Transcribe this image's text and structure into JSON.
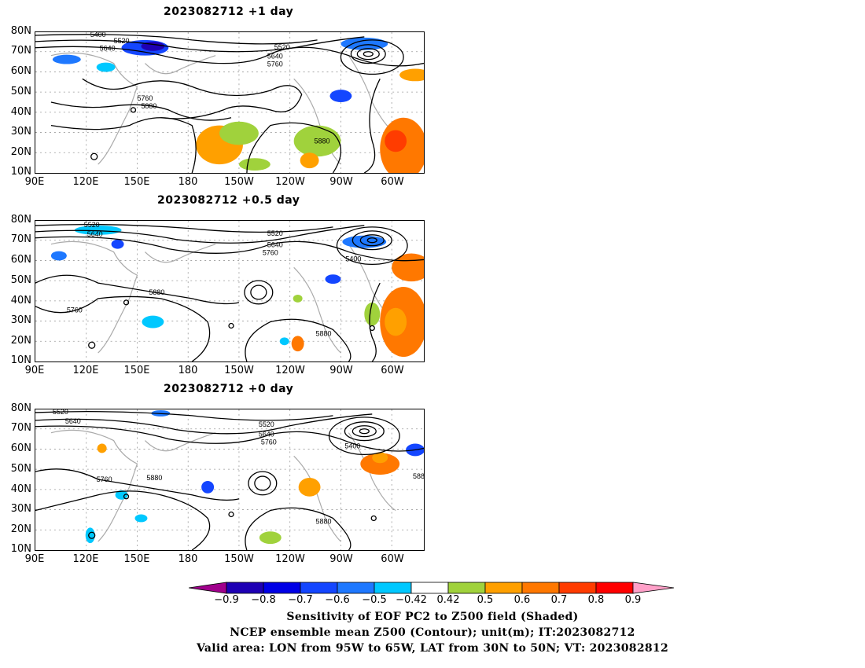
{
  "panels": [
    {
      "title": "2023082712  +1 day"
    },
    {
      "title": "2023082712  +0.5 day"
    },
    {
      "title": "2023082712  +0 day"
    }
  ],
  "lat_labels": [
    "80N",
    "70N",
    "60N",
    "50N",
    "40N",
    "30N",
    "20N",
    "10N"
  ],
  "lon_labels": [
    "90E",
    "120E",
    "150E",
    "180",
    "150W",
    "120W",
    "90W",
    "60W"
  ],
  "contour_labels": {
    "p0": [
      "5400",
      "5520",
      "5640",
      "5520",
      "5640",
      "5760",
      "5760",
      "5880",
      "5880"
    ],
    "p1": [
      "5520",
      "5640",
      "5520",
      "5640",
      "5760",
      "5400",
      "5880",
      "5760",
      "5880"
    ],
    "p2": [
      "5520",
      "5640",
      "5520",
      "5640",
      "5760",
      "5400",
      "5760",
      "5880",
      "5880",
      "588"
    ]
  },
  "colorbar": {
    "labels": [
      "−0.9",
      "−0.8",
      "−0.7",
      "−0.6",
      "−0.5",
      "−0.42",
      "0.42",
      "0.5",
      "0.6",
      "0.7",
      "0.8",
      "0.9"
    ],
    "colors": [
      "#a0008c",
      "#1e00b4",
      "#0000e6",
      "#1446ff",
      "#1e78ff",
      "#00c8ff",
      "#ffffff",
      "#a0d23c",
      "#ffa000",
      "#ff7800",
      "#ff3c00",
      "#ff0000",
      "#ffa0c8"
    ]
  },
  "caption": {
    "line1": "Sensitivity of EOF PC2 to Z500 field (Shaded)",
    "line2": "NCEP ensemble mean Z500 (Contour); unit(m); IT:2023082712",
    "line3": "Valid area: LON from 95W to 65W, LAT from 30N to 50N; VT: 2023082812"
  }
}
